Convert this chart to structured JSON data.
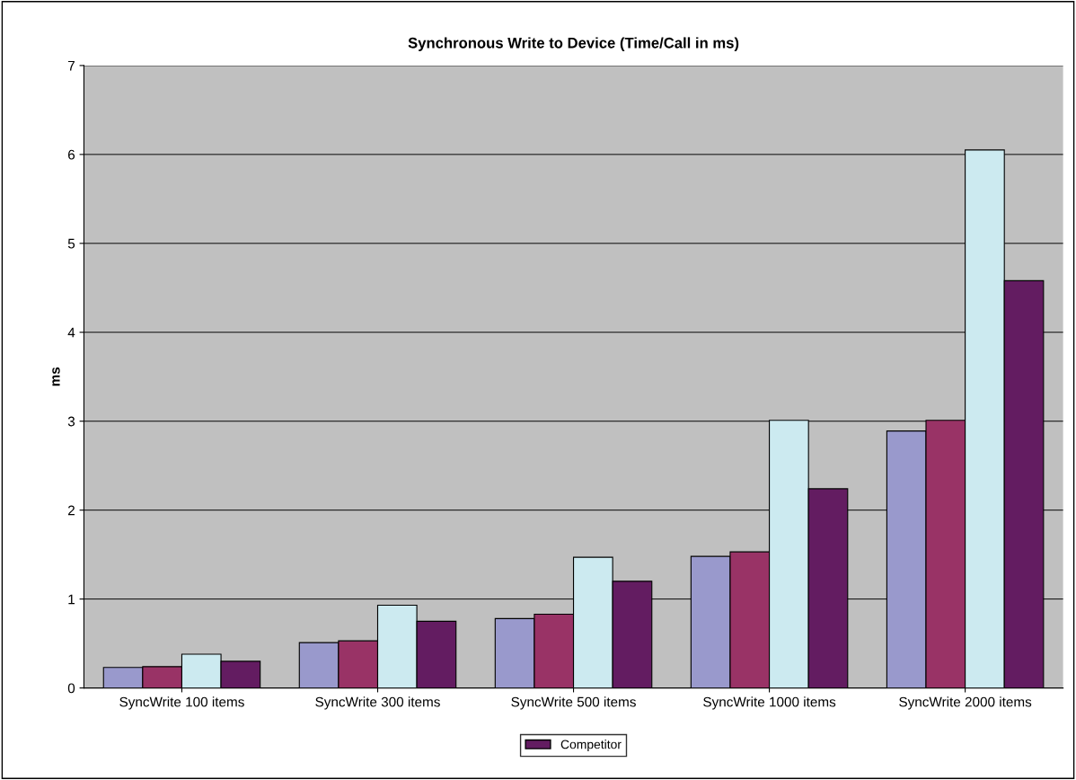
{
  "chart_data": {
    "type": "bar",
    "title": "Synchronous Write to Device (Time/Call in ms)",
    "ylabel": "ms",
    "categories": [
      "SyncWrite 100 items",
      "SyncWrite 300 items",
      "SyncWrite 500 items",
      "SyncWrite 1000 items",
      "SyncWrite 2000 items"
    ],
    "series": [
      {
        "color": "#9999cc",
        "values": [
          0.23,
          0.51,
          0.78,
          1.48,
          2.89
        ]
      },
      {
        "color": "#993366",
        "values": [
          0.24,
          0.53,
          0.83,
          1.53,
          3.01
        ]
      },
      {
        "color": "#cceaf0",
        "values": [
          0.38,
          0.93,
          1.47,
          3.01,
          6.05
        ]
      },
      {
        "name": "Competitor",
        "color": "#631c61",
        "values": [
          0.3,
          0.75,
          1.2,
          2.24,
          4.58
        ]
      }
    ],
    "ylim": [
      0,
      7
    ],
    "yticks": [
      0,
      1,
      2,
      3,
      4,
      5,
      6,
      7
    ],
    "grid": "y",
    "legend": "bottom"
  }
}
